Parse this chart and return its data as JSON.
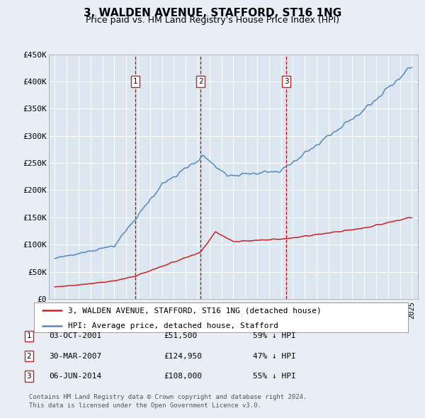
{
  "title": "3, WALDEN AVENUE, STAFFORD, ST16 1NG",
  "subtitle": "Price paid vs. HM Land Registry's House Price Index (HPI)",
  "ylim": [
    0,
    450000
  ],
  "yticks": [
    0,
    50000,
    100000,
    150000,
    200000,
    250000,
    300000,
    350000,
    400000,
    450000
  ],
  "ytick_labels": [
    "£0",
    "£50K",
    "£100K",
    "£150K",
    "£200K",
    "£250K",
    "£300K",
    "£350K",
    "£400K",
    "£450K"
  ],
  "xlim": [
    1994.5,
    2025.5
  ],
  "background_color": "#e8eef5",
  "plot_bg_color": "#dce6f0",
  "grid_color": "#ffffff",
  "hpi_color": "#5588bb",
  "price_color": "#cc2222",
  "vline_color": "#cc0000",
  "legend_label_price": "3, WALDEN AVENUE, STAFFORD, ST16 1NG (detached house)",
  "legend_label_hpi": "HPI: Average price, detached house, Stafford",
  "transactions": [
    {
      "label": "1",
      "date": "03-OCT-2001",
      "price": 51500,
      "price_str": "£51,500",
      "pct": "59%",
      "x_year": 2001.75
    },
    {
      "label": "2",
      "date": "30-MAR-2007",
      "price": 124950,
      "price_str": "£124,950",
      "pct": "47%",
      "x_year": 2007.25
    },
    {
      "label": "3",
      "date": "06-JUN-2014",
      "price": 108000,
      "price_str": "£108,000",
      "pct": "55%",
      "x_year": 2014.45
    }
  ],
  "footer_line1": "Contains HM Land Registry data © Crown copyright and database right 2024.",
  "footer_line2": "This data is licensed under the Open Government Licence v3.0."
}
